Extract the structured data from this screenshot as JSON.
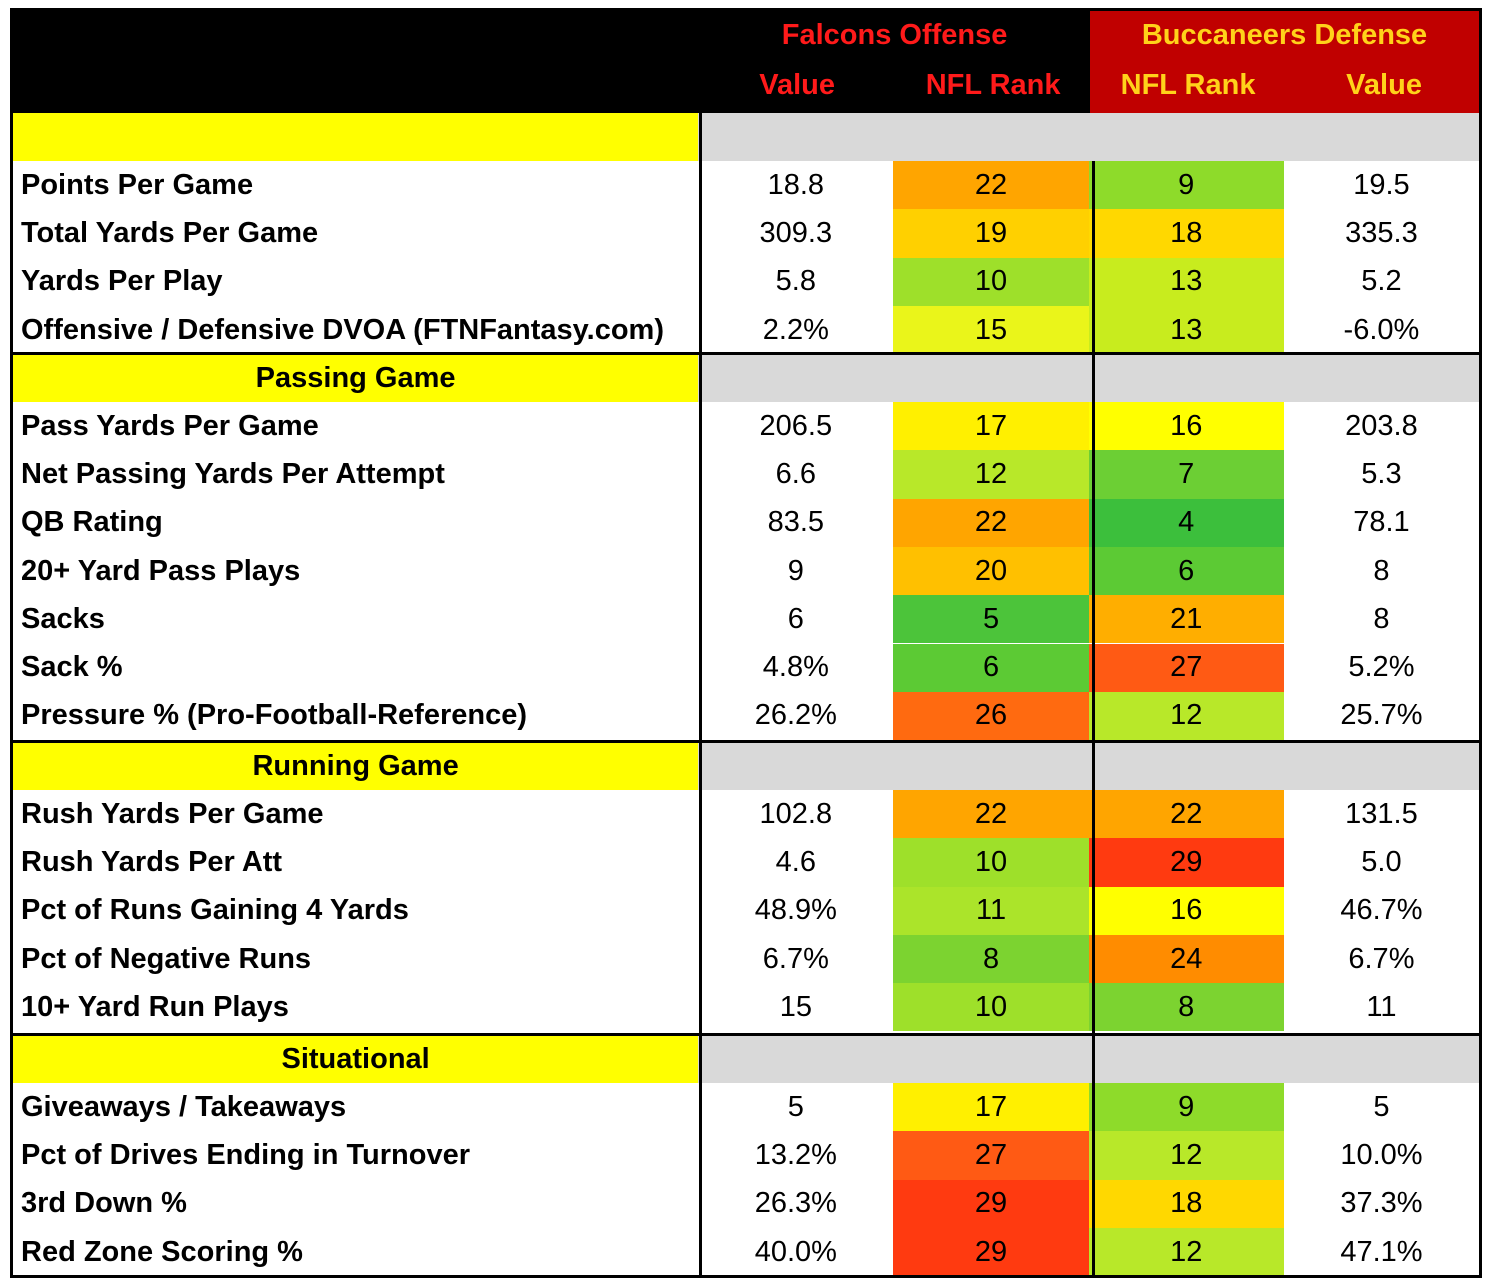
{
  "header": {
    "offense_title": "Falcons Offense",
    "defense_title": "Buccaneers Defense",
    "offense_value_label": "Value",
    "offense_rank_label": "NFL Rank",
    "defense_rank_label": "NFL Rank",
    "defense_value_label": "Value",
    "colors": {
      "offense_text": "#ff1a1a",
      "defense_text": "#ffd21a",
      "defense_bg": "#c00000"
    }
  },
  "sections": [
    {
      "title": "",
      "rows": [
        {
          "label": "Points Per Game",
          "off_value": "18.8",
          "off_rank": "22",
          "off_color": "#ffa500",
          "def_rank": "9",
          "def_color": "#8edb2a",
          "def_value": "19.5"
        },
        {
          "label": "Total Yards Per Game",
          "off_value": "309.3",
          "off_rank": "19",
          "off_color": "#ffd000",
          "def_rank": "18",
          "def_color": "#ffd800",
          "def_value": "335.3"
        },
        {
          "label": "Yards Per Play",
          "off_value": "5.8",
          "off_rank": "10",
          "off_color": "#9ee02a",
          "def_rank": "13",
          "def_color": "#c8ec1e",
          "def_value": "5.2"
        },
        {
          "label": "Offensive / Defensive DVOA (FTNFantasy.com)",
          "off_value": "2.2%",
          "off_rank": "15",
          "off_color": "#eaf51a",
          "def_rank": "13",
          "def_color": "#c8ec1e",
          "def_value": "-6.0%"
        }
      ]
    },
    {
      "title": "Passing Game",
      "rows": [
        {
          "label": "Pass Yards Per Game",
          "off_value": "206.5",
          "off_rank": "17",
          "off_color": "#fff000",
          "def_rank": "16",
          "def_color": "#ffff00",
          "def_value": "203.8"
        },
        {
          "label": "Net Passing Yards Per Attempt",
          "off_value": "6.6",
          "off_rank": "12",
          "off_color": "#b8e829",
          "def_rank": "7",
          "def_color": "#6ccf34",
          "def_value": "5.3"
        },
        {
          "label": "QB Rating",
          "off_value": "83.5",
          "off_rank": "22",
          "off_color": "#ffa500",
          "def_rank": "4",
          "def_color": "#3cbf3c",
          "def_value": "78.1"
        },
        {
          "label": "20+ Yard Pass Plays",
          "off_value": "9",
          "off_rank": "20",
          "off_color": "#ffc000",
          "def_rank": "6",
          "def_color": "#5cca34",
          "def_value": "8"
        },
        {
          "label": "Sacks",
          "off_value": "6",
          "off_rank": "5",
          "off_color": "#4cc43a",
          "def_rank": "21",
          "def_color": "#ffae00",
          "def_value": "8"
        },
        {
          "label": "Sack %",
          "off_value": "4.8%",
          "off_rank": "6",
          "off_color": "#5cca34",
          "def_rank": "27",
          "def_color": "#ff5a14",
          "def_value": "5.2%"
        },
        {
          "label": "Pressure % (Pro-Football-Reference)",
          "off_value": "26.2%",
          "off_rank": "26",
          "off_color": "#ff6a10",
          "def_rank": "12",
          "def_color": "#b8e829",
          "def_value": "25.7%"
        }
      ]
    },
    {
      "title": "Running Game",
      "rows": [
        {
          "label": "Rush Yards Per Game",
          "off_value": "102.8",
          "off_rank": "22",
          "off_color": "#ffa500",
          "def_rank": "22",
          "def_color": "#ffa500",
          "def_value": "131.5"
        },
        {
          "label": "Rush Yards Per Att",
          "off_value": "4.6",
          "off_rank": "10",
          "off_color": "#9ee02a",
          "def_rank": "29",
          "def_color": "#ff3a10",
          "def_value": "5.0"
        },
        {
          "label": "Pct of Runs Gaining 4 Yards",
          "off_value": "48.9%",
          "off_rank": "11",
          "off_color": "#abe42a",
          "def_rank": "16",
          "def_color": "#ffff00",
          "def_value": "46.7%"
        },
        {
          "label": "Pct of Negative Runs",
          "off_value": "6.7%",
          "off_rank": "8",
          "off_color": "#7cd330",
          "def_rank": "24",
          "def_color": "#ff8c00",
          "def_value": "6.7%"
        },
        {
          "label": "10+ Yard Run Plays",
          "off_value": "15",
          "off_rank": "10",
          "off_color": "#9ee02a",
          "def_rank": "8",
          "def_color": "#7cd330",
          "def_value": "11"
        }
      ]
    },
    {
      "title": "Situational",
      "rows": [
        {
          "label": "Giveaways / Takeaways",
          "off_value": "5",
          "off_rank": "17",
          "off_color": "#fff000",
          "def_rank": "9",
          "def_color": "#8edb2a",
          "def_value": "5"
        },
        {
          "label": "Pct of Drives Ending in Turnover",
          "off_value": "13.2%",
          "off_rank": "27",
          "off_color": "#ff5a14",
          "def_rank": "12",
          "def_color": "#b8e829",
          "def_value": "10.0%"
        },
        {
          "label": "3rd Down %",
          "off_value": "26.3%",
          "off_rank": "29",
          "off_color": "#ff3a10",
          "def_rank": "18",
          "def_color": "#ffd800",
          "def_value": "37.3%"
        },
        {
          "label": "Red Zone Scoring %",
          "off_value": "40.0%",
          "off_rank": "29",
          "off_color": "#ff3a10",
          "def_rank": "12",
          "def_color": "#b8e829",
          "def_value": "47.1%"
        }
      ]
    }
  ]
}
